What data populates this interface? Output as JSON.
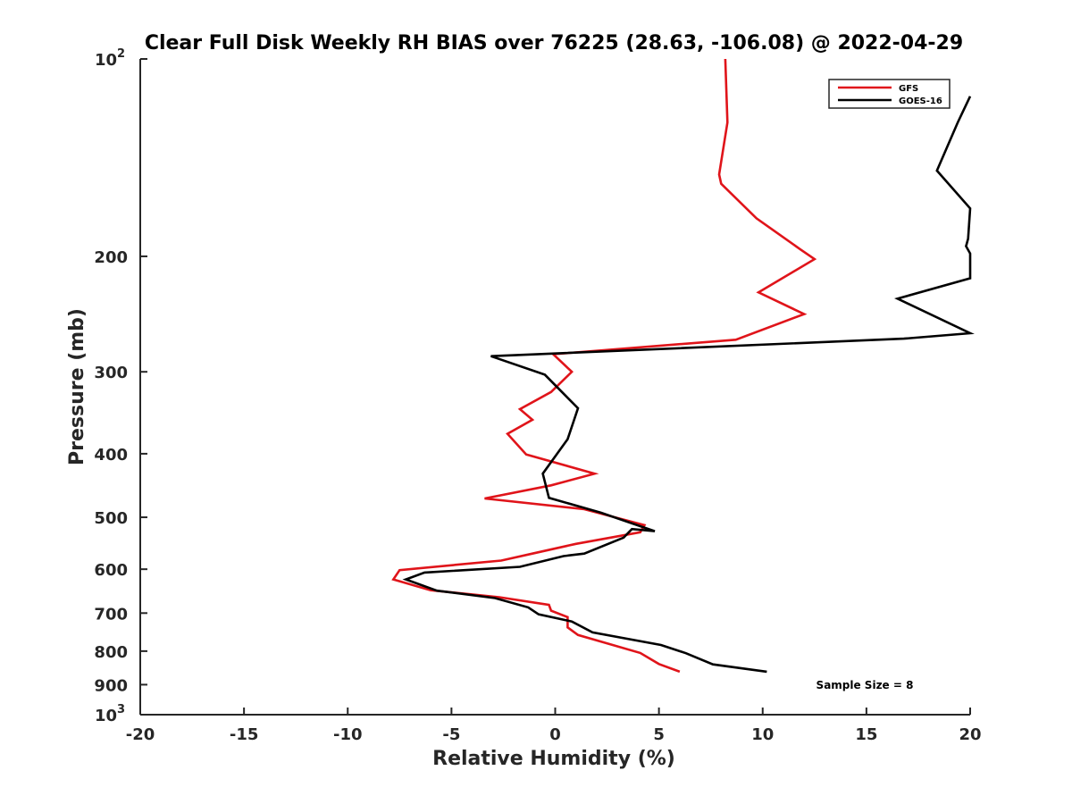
{
  "chart_data": {
    "type": "line",
    "title": "Clear Full Disk Weekly RH BIAS over 76225 (28.63, -106.08) @ 2022-04-29",
    "xlabel": "Relative Humidity (%)",
    "ylabel": "Pressure (mb)",
    "xlim": [
      -20,
      20
    ],
    "ylim": [
      100,
      1000
    ],
    "y_scale": "log",
    "y_reversed": true,
    "grid": false,
    "legend_position": "top-right",
    "x_ticks": [
      "-20",
      "-15",
      "-10",
      "-5",
      "0",
      "5",
      "10",
      "15",
      "20"
    ],
    "y_ticks": [
      {
        "value": 100,
        "base": "10",
        "exp": "2"
      },
      {
        "value": 200,
        "label": "200"
      },
      {
        "value": 300,
        "label": "300"
      },
      {
        "value": 400,
        "label": "400"
      },
      {
        "value": 500,
        "label": "500"
      },
      {
        "value": 600,
        "label": "600"
      },
      {
        "value": 700,
        "label": "700"
      },
      {
        "value": 800,
        "label": "800"
      },
      {
        "value": 900,
        "label": "900"
      },
      {
        "value": 1000,
        "base": "10",
        "exp": "3"
      }
    ],
    "series": [
      {
        "name": "GFS",
        "color": "#e0141a",
        "points": [
          [
            8.2,
            100
          ],
          [
            8.3,
            125
          ],
          [
            7.9,
            150
          ],
          [
            8.0,
            155
          ],
          [
            9.7,
            175
          ],
          [
            11.8,
            195
          ],
          [
            12.5,
            202
          ],
          [
            9.8,
            227
          ],
          [
            12.0,
            245
          ],
          [
            8.7,
            268
          ],
          [
            -0.1,
            282
          ],
          [
            0.8,
            300
          ],
          [
            -0.2,
            322
          ],
          [
            -1.7,
            342
          ],
          [
            -1.1,
            355
          ],
          [
            -2.3,
            373
          ],
          [
            -1.4,
            401
          ],
          [
            1.9,
            429
          ],
          [
            -0.2,
            447
          ],
          [
            -3.4,
            468
          ],
          [
            1.4,
            486
          ],
          [
            4.3,
            514
          ],
          [
            4.1,
            527
          ],
          [
            1.0,
            549
          ],
          [
            -1.1,
            568
          ],
          [
            -2.6,
            582
          ],
          [
            -7.5,
            602
          ],
          [
            -7.8,
            622
          ],
          [
            -6.0,
            646
          ],
          [
            -2.7,
            662
          ],
          [
            -0.3,
            680
          ],
          [
            -0.2,
            694
          ],
          [
            0.6,
            710
          ],
          [
            0.6,
            736
          ],
          [
            1.1,
            756
          ],
          [
            4.1,
            805
          ],
          [
            5.0,
            837
          ],
          [
            6.0,
            860
          ]
        ]
      },
      {
        "name": "GOES-16",
        "color": "#000000",
        "points": [
          [
            20.0,
            114
          ],
          [
            19.4,
            125
          ],
          [
            18.4,
            148
          ],
          [
            20.0,
            169
          ],
          [
            19.9,
            188
          ],
          [
            19.8,
            193
          ],
          [
            20.0,
            198
          ],
          [
            20.0,
            216
          ],
          [
            16.5,
            232
          ],
          [
            20.0,
            262
          ],
          [
            16.8,
            267
          ],
          [
            -3.1,
            284
          ],
          [
            -0.5,
            303
          ],
          [
            1.1,
            341
          ],
          [
            0.6,
            380
          ],
          [
            -0.6,
            429
          ],
          [
            -0.3,
            467
          ],
          [
            2.2,
            492
          ],
          [
            4.8,
            525
          ],
          [
            3.7,
            521
          ],
          [
            3.3,
            537
          ],
          [
            1.4,
            568
          ],
          [
            0.4,
            573
          ],
          [
            -1.7,
            595
          ],
          [
            -6.3,
            607
          ],
          [
            -7.2,
            622
          ],
          [
            -5.7,
            647
          ],
          [
            -2.9,
            664
          ],
          [
            -1.3,
            686
          ],
          [
            -0.8,
            703
          ],
          [
            0.8,
            721
          ],
          [
            1.8,
            749
          ],
          [
            5.1,
            783
          ],
          [
            6.3,
            806
          ],
          [
            7.6,
            838
          ],
          [
            10.2,
            860
          ]
        ]
      }
    ],
    "annotation": "Sample Size = 8"
  }
}
